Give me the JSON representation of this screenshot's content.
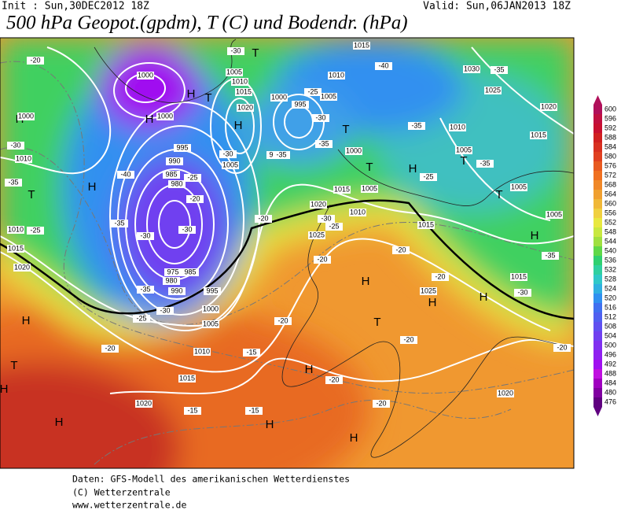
{
  "header": {
    "init": "Init : Sun,30DEC2012 18Z",
    "valid": "Valid: Sun,06JAN2013 18Z",
    "title": "500 hPa Geopot.(gpdm), T (C) und Bodendr. (hPa)"
  },
  "map": {
    "labels": [
      "H",
      "H",
      "H",
      "T",
      "T",
      "H",
      "T",
      "T",
      "H",
      "T",
      "T",
      "H",
      "H",
      "T",
      "H",
      "T",
      "H",
      "H",
      "H",
      "H",
      "T",
      "H",
      "H",
      "H",
      "H",
      "1000",
      "1000",
      "995",
      "990",
      "985",
      "980",
      "1005",
      "1010",
      "1015",
      "1020",
      "1005",
      "1000",
      "995",
      "1005",
      "1010",
      "1015",
      "995",
      "1000",
      "1005",
      "1015",
      "1020",
      "1025",
      "1010",
      "1015",
      "1025",
      "1015",
      "1020",
      "1025",
      "1030",
      "1005",
      "1010",
      "1015",
      "1005",
      "1005",
      "1000",
      "1005",
      "1010",
      "1015",
      "1020",
      "1020",
      "1010",
      "1015",
      "1020",
      "1010",
      "1000",
      "985",
      "995",
      "980",
      "975",
      "990",
      "-20",
      "-40",
      "-35",
      "-30",
      "-30",
      "-25",
      "-35",
      "-30",
      "-25",
      "-20",
      "-15",
      "-20",
      "-20",
      "-20",
      "-15",
      "-15",
      "-20",
      "-20",
      "-20",
      "-20",
      "-25",
      "-30",
      "-20",
      "-25",
      "-30",
      "-35",
      "-35",
      "-30",
      "-25",
      "-40",
      "-35",
      "-35",
      "-25",
      "-35",
      "-35",
      "-30",
      "-20",
      "-30",
      "-30",
      "-35",
      "-20"
    ]
  },
  "colorbar": {
    "values": [
      600,
      596,
      592,
      588,
      584,
      580,
      576,
      572,
      568,
      564,
      560,
      556,
      552,
      548,
      544,
      540,
      536,
      532,
      528,
      524,
      520,
      516,
      512,
      508,
      504,
      500,
      496,
      492,
      488,
      484,
      480,
      476
    ],
    "colors": [
      "#b0105a",
      "#c01040",
      "#c81030",
      "#d02020",
      "#d83020",
      "#e04020",
      "#e85a20",
      "#f07020",
      "#f08828",
      "#f0a030",
      "#f0b838",
      "#f0d040",
      "#e8e840",
      "#c8e840",
      "#a0e040",
      "#60d848",
      "#30d070",
      "#30d0a0",
      "#30c8c8",
      "#30b0e0",
      "#3090f0",
      "#4070f0",
      "#5060f0",
      "#6050f0",
      "#7040f0",
      "#8030f0",
      "#9020f0",
      "#a010f0",
      "#c010e0",
      "#a000c0",
      "#8000a0",
      "#600080"
    ]
  },
  "footer": {
    "lines": [
      "Daten: GFS-Modell des amerikanischen Wetterdienstes",
      "(C) Wetterzentrale",
      "www.wetterzentrale.de"
    ]
  }
}
